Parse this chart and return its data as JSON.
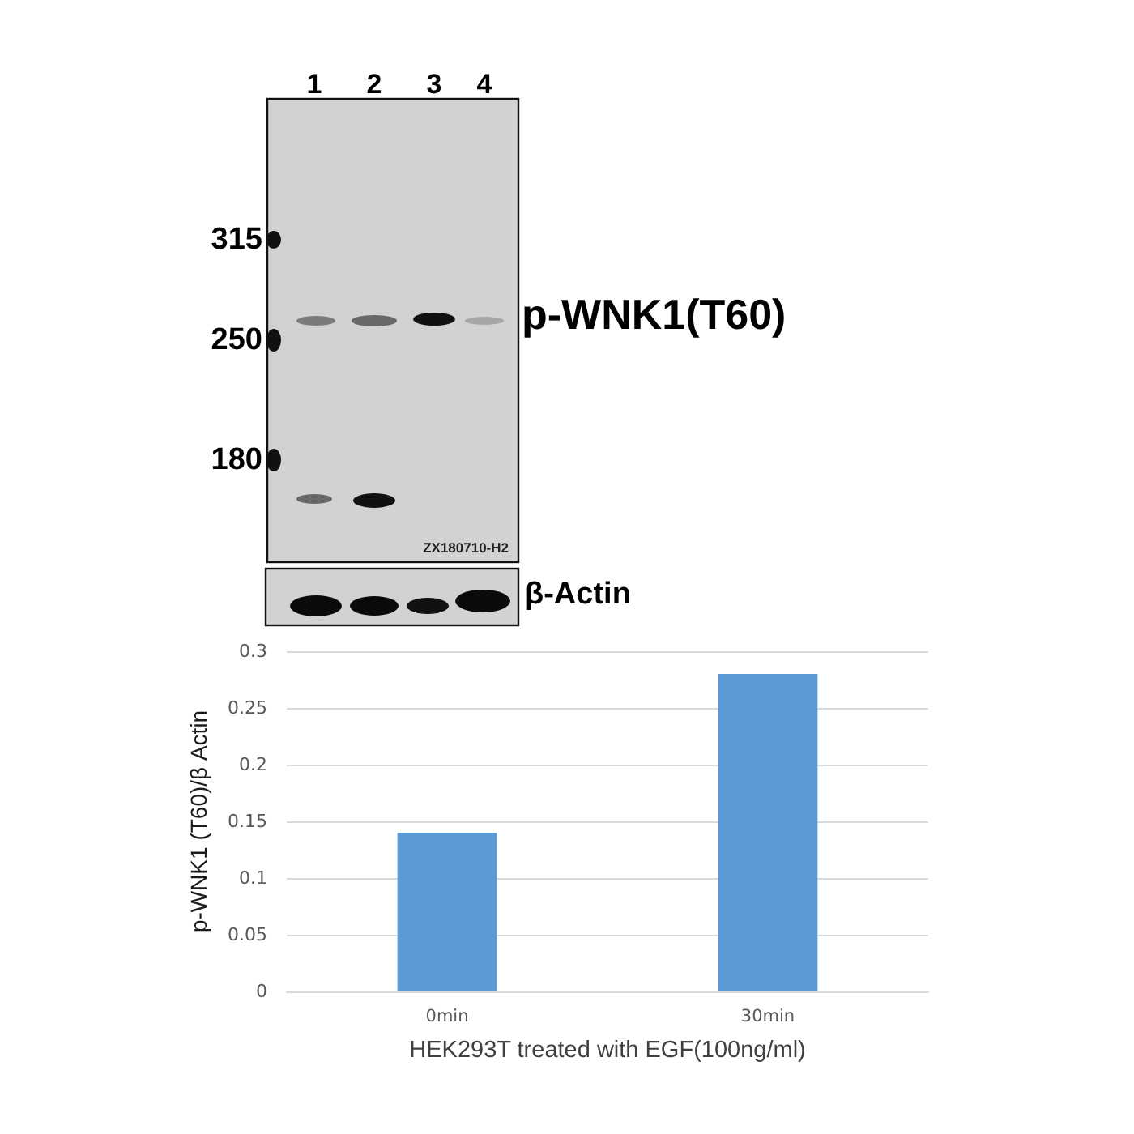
{
  "chart_data": {
    "type": "bar",
    "categories": [
      "0min",
      "30min"
    ],
    "values": [
      0.14,
      0.28
    ],
    "color": "#5b9bd5",
    "ylim": [
      0,
      0.3
    ],
    "yticks": [
      0,
      0.05,
      0.1,
      0.15,
      0.2,
      0.25,
      0.3
    ],
    "grid": "y",
    "ylabel": "p-WNK1 (T60)/β Actin",
    "xlabel": "HEK293T treated with EGF(100ng/ml)",
    "annotations": [
      "1",
      "2",
      "3",
      "4",
      "315",
      "250",
      "180",
      "p-WNK1(T60)",
      "ZX180710-H2",
      "β-Actin"
    ]
  }
}
